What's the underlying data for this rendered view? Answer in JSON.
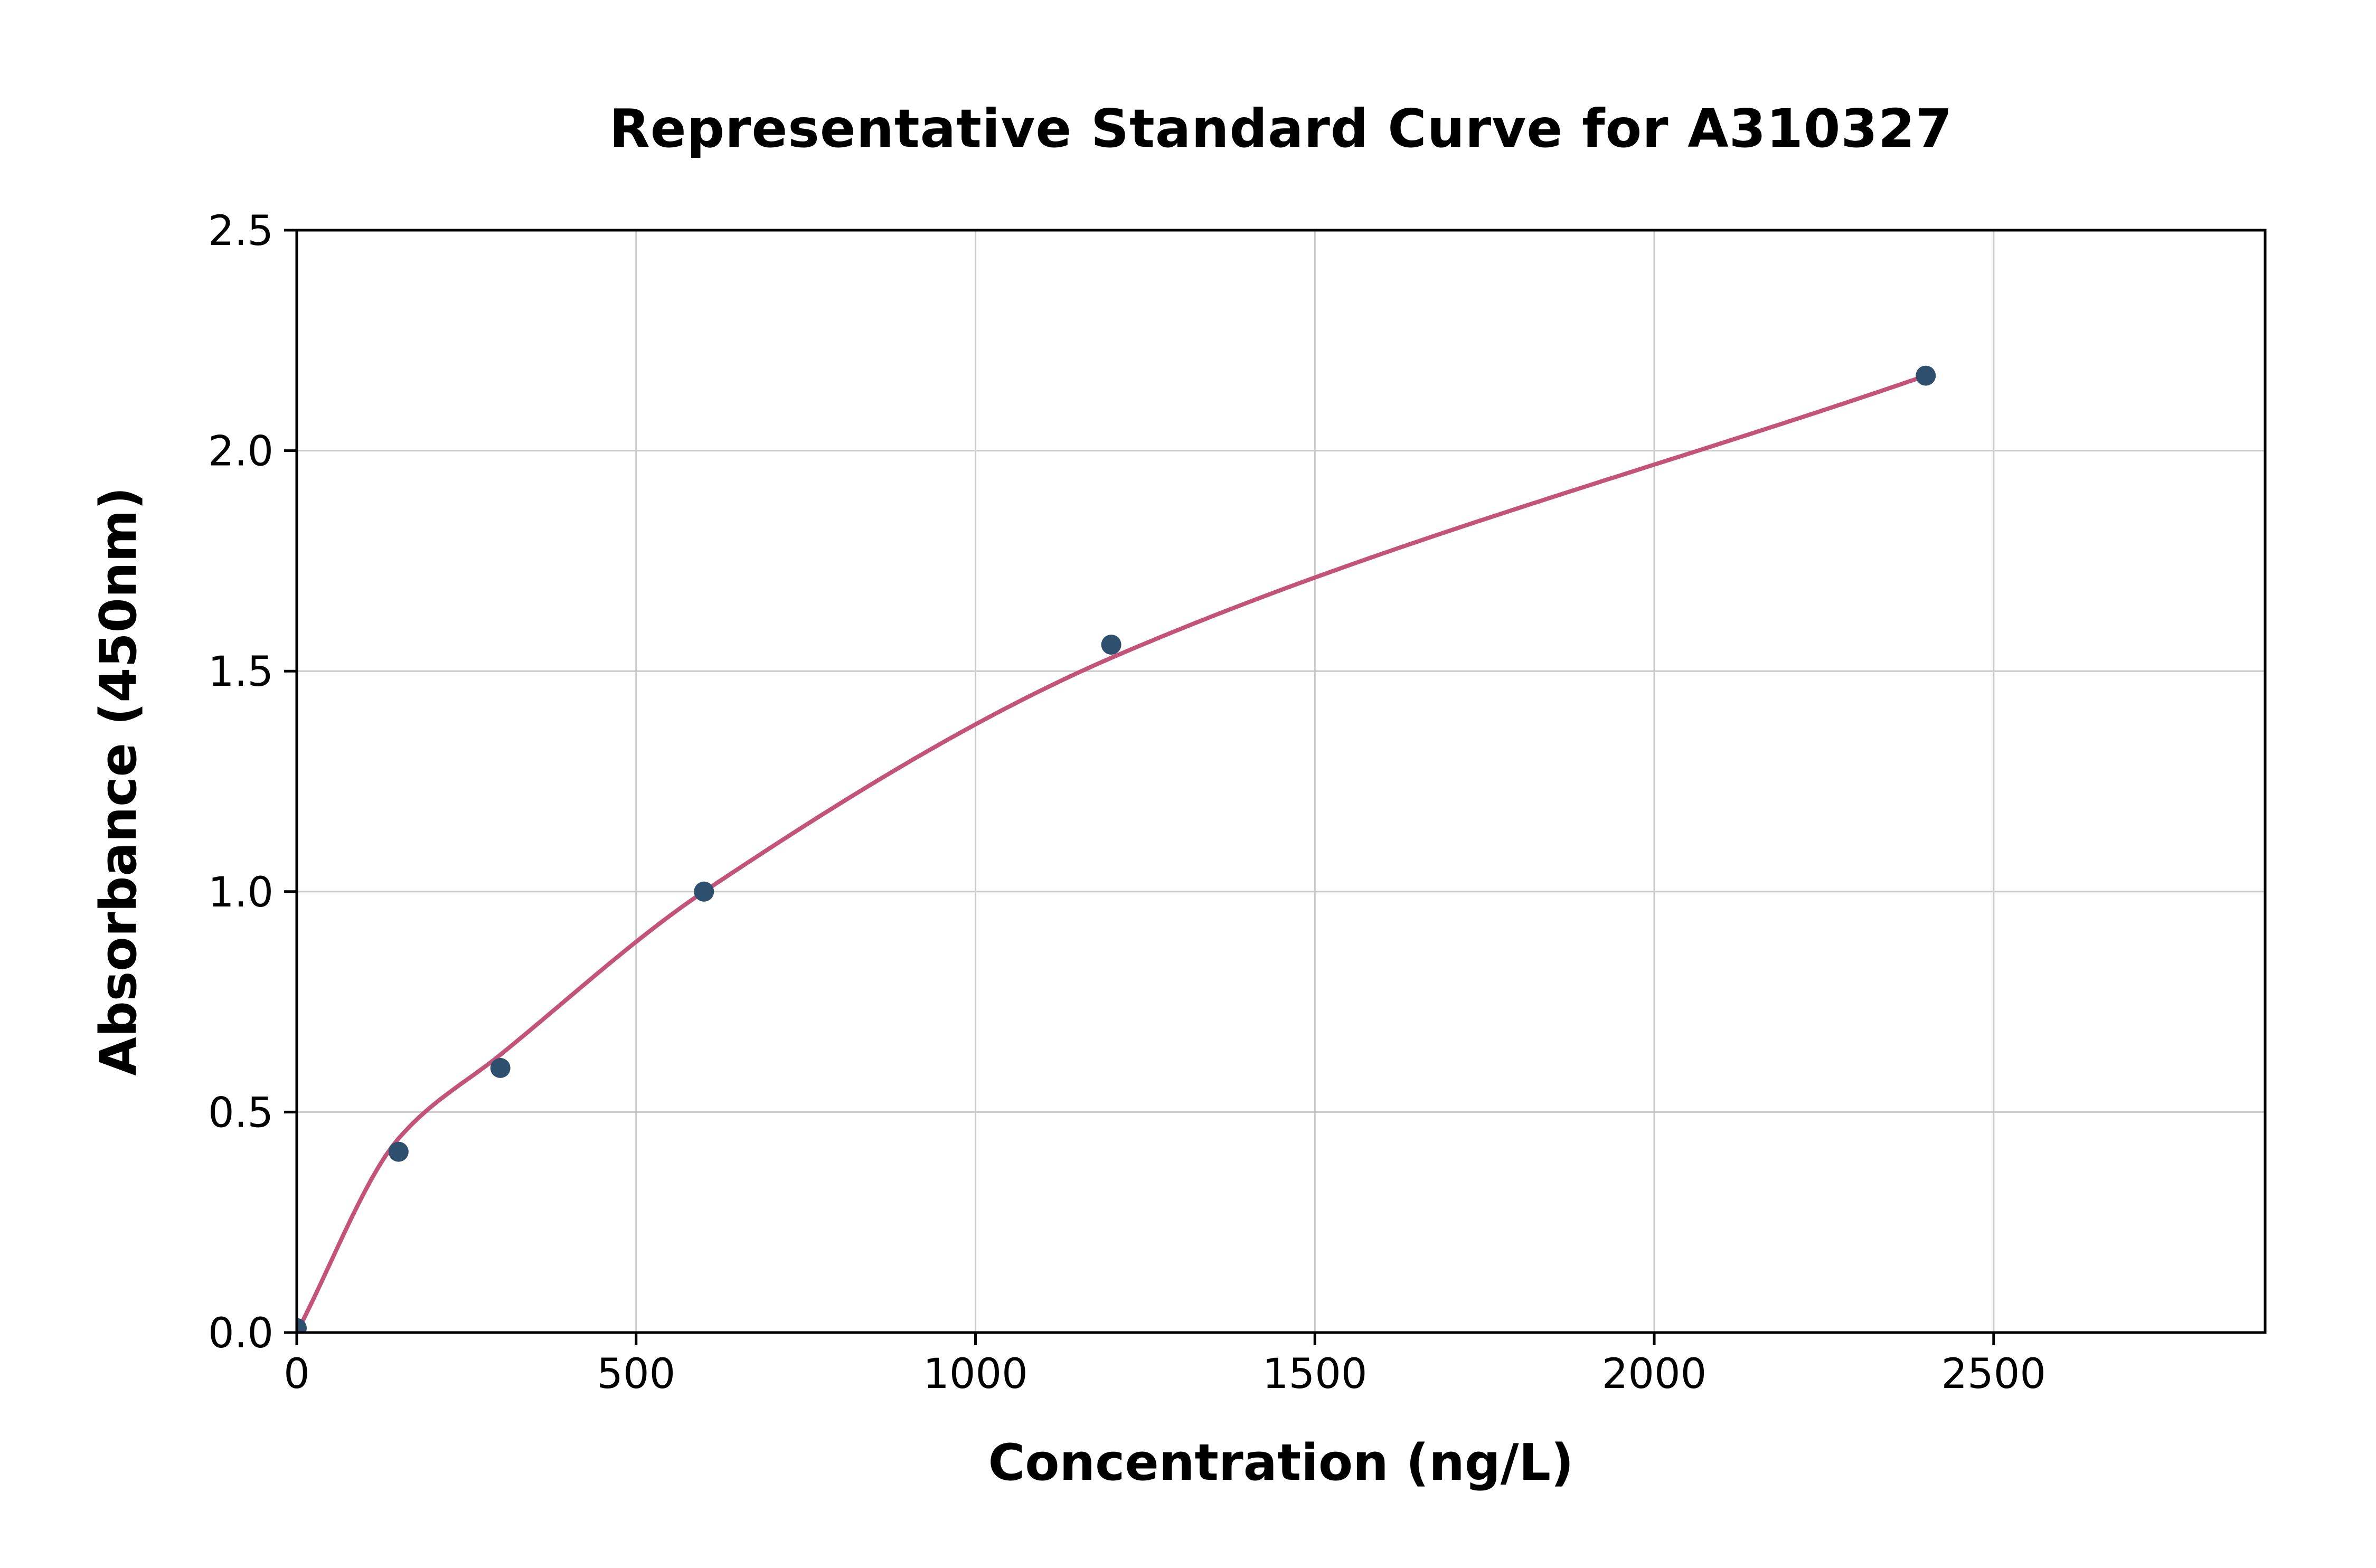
{
  "chart_data": {
    "type": "scatter",
    "title": "Representative Standard Curve for A310327",
    "xlabel": "Concentration (ng/L)",
    "ylabel": "Absorbance (450nm)",
    "xlim": [
      0,
      2900
    ],
    "ylim": [
      0,
      2.5
    ],
    "grid": true,
    "legend_position": "none",
    "x_ticks": {
      "values": [
        0,
        500,
        1000,
        1500,
        2000,
        2500
      ],
      "labels": [
        "0",
        "500",
        "1000",
        "1500",
        "2000",
        "2500"
      ]
    },
    "y_ticks": {
      "values": [
        0,
        0.5,
        1.0,
        1.5,
        2.0,
        2.5
      ],
      "labels": [
        "0.0",
        "0.5",
        "1.0",
        "1.5",
        "2.0",
        "2.5"
      ]
    },
    "series": [
      {
        "name": "fit-curve",
        "type": "line",
        "color": "#c4537b",
        "x": [
          0,
          150,
          300,
          600,
          1200,
          2400
        ],
        "y": [
          0.0,
          0.44,
          0.63,
          1.0,
          1.53,
          2.17
        ]
      },
      {
        "name": "standard-points",
        "type": "scatter",
        "color": "#2f4f6f",
        "x": [
          0,
          150,
          300,
          600,
          1200,
          2400
        ],
        "y": [
          0.01,
          0.41,
          0.6,
          1.0,
          1.56,
          2.17
        ]
      }
    ],
    "colors": {
      "curve": "#c4537b",
      "points": "#2f4f6f",
      "grid": "#c9c9c9",
      "axis": "#000000",
      "background": "#ffffff"
    }
  }
}
